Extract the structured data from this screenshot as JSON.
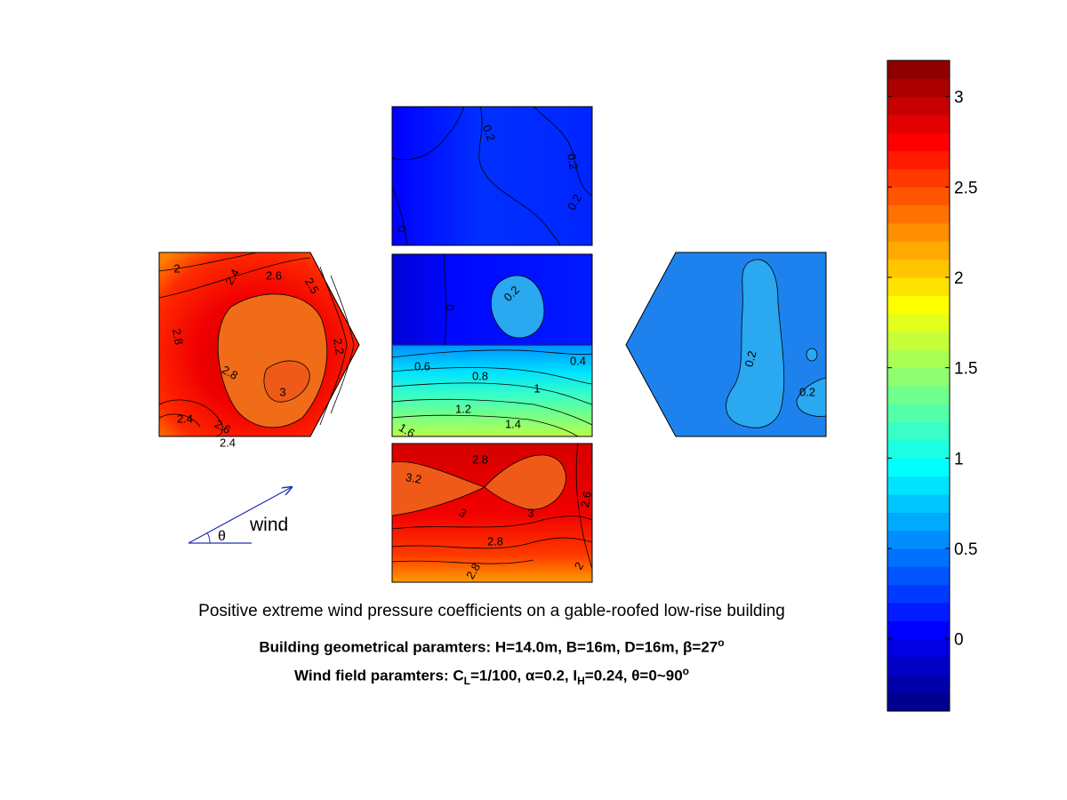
{
  "chart_data": {
    "type": "contour",
    "colorbar": {
      "min": -0.4,
      "max": 3.2,
      "ticks": [
        "0",
        "0.5",
        "1",
        "1.5",
        "2",
        "2.5",
        "3"
      ],
      "tick_values": [
        0,
        0.5,
        1,
        1.5,
        2,
        2.5,
        3
      ],
      "colormap": "jet",
      "levels": 36
    },
    "panels": [
      {
        "name": "upper-wall",
        "contour_labels": [
          {
            "text": "0.2",
            "value": 0.2
          },
          {
            "text": "0.2",
            "value": 0.2
          },
          {
            "text": "0.2",
            "value": 0.2
          },
          {
            "text": "0",
            "value": 0
          }
        ]
      },
      {
        "name": "left-gable-wall",
        "contour_labels": [
          {
            "text": "2",
            "value": 2
          },
          {
            "text": "2.4",
            "value": 2.4
          },
          {
            "text": "2.6",
            "value": 2.6
          },
          {
            "text": "2.5",
            "value": 2.5
          },
          {
            "text": "2.8",
            "value": 2.8
          },
          {
            "text": "2.8",
            "value": 2.8
          },
          {
            "text": "2.2",
            "value": 2.2
          },
          {
            "text": "3",
            "value": 3
          },
          {
            "text": "2.4",
            "value": 2.4
          },
          {
            "text": "2.6",
            "value": 2.6
          },
          {
            "text": "2.4",
            "value": 2.4
          }
        ]
      },
      {
        "name": "roof-leeward",
        "contour_labels": [
          {
            "text": "0",
            "value": 0
          },
          {
            "text": "0.2",
            "value": 0.2
          }
        ]
      },
      {
        "name": "roof-windward",
        "contour_labels": [
          {
            "text": "0.6",
            "value": 0.6
          },
          {
            "text": "0.8",
            "value": 0.8
          },
          {
            "text": "0.4",
            "value": 0.4
          },
          {
            "text": "1",
            "value": 1
          },
          {
            "text": "1.2",
            "value": 1.2
          },
          {
            "text": "1.4",
            "value": 1.4
          },
          {
            "text": "1.6",
            "value": 1.6
          }
        ]
      },
      {
        "name": "right-gable-wall",
        "contour_labels": [
          {
            "text": "0.2",
            "value": 0.2
          },
          {
            "text": "0.2",
            "value": 0.2
          }
        ]
      },
      {
        "name": "lower-wall",
        "contour_labels": [
          {
            "text": "3.2",
            "value": 3.2
          },
          {
            "text": "2.8",
            "value": 2.8
          },
          {
            "text": "3",
            "value": 3
          },
          {
            "text": "3",
            "value": 3
          },
          {
            "text": "2.8",
            "value": 2.8
          },
          {
            "text": "2.6",
            "value": 2.6
          },
          {
            "text": "2.8",
            "value": 2.8
          },
          {
            "text": "2",
            "value": 2
          }
        ]
      }
    ],
    "wind_label": "wind",
    "angle_symbol": "θ",
    "title": "Positive extreme wind pressure coefficients on a gable-roofed low-rise building",
    "geometry_line": {
      "text": "Building geometrical paramters: H=14.0m, B=16m, D=16m, β=27",
      "sup": "o"
    },
    "wind_line": {
      "p1": "Wind field paramters: C",
      "sub1": "L",
      "p2": "=1/100, α=0.2, I",
      "sub2": "H",
      "p3": "=0.24, θ=0~90",
      "sup": "o"
    }
  }
}
